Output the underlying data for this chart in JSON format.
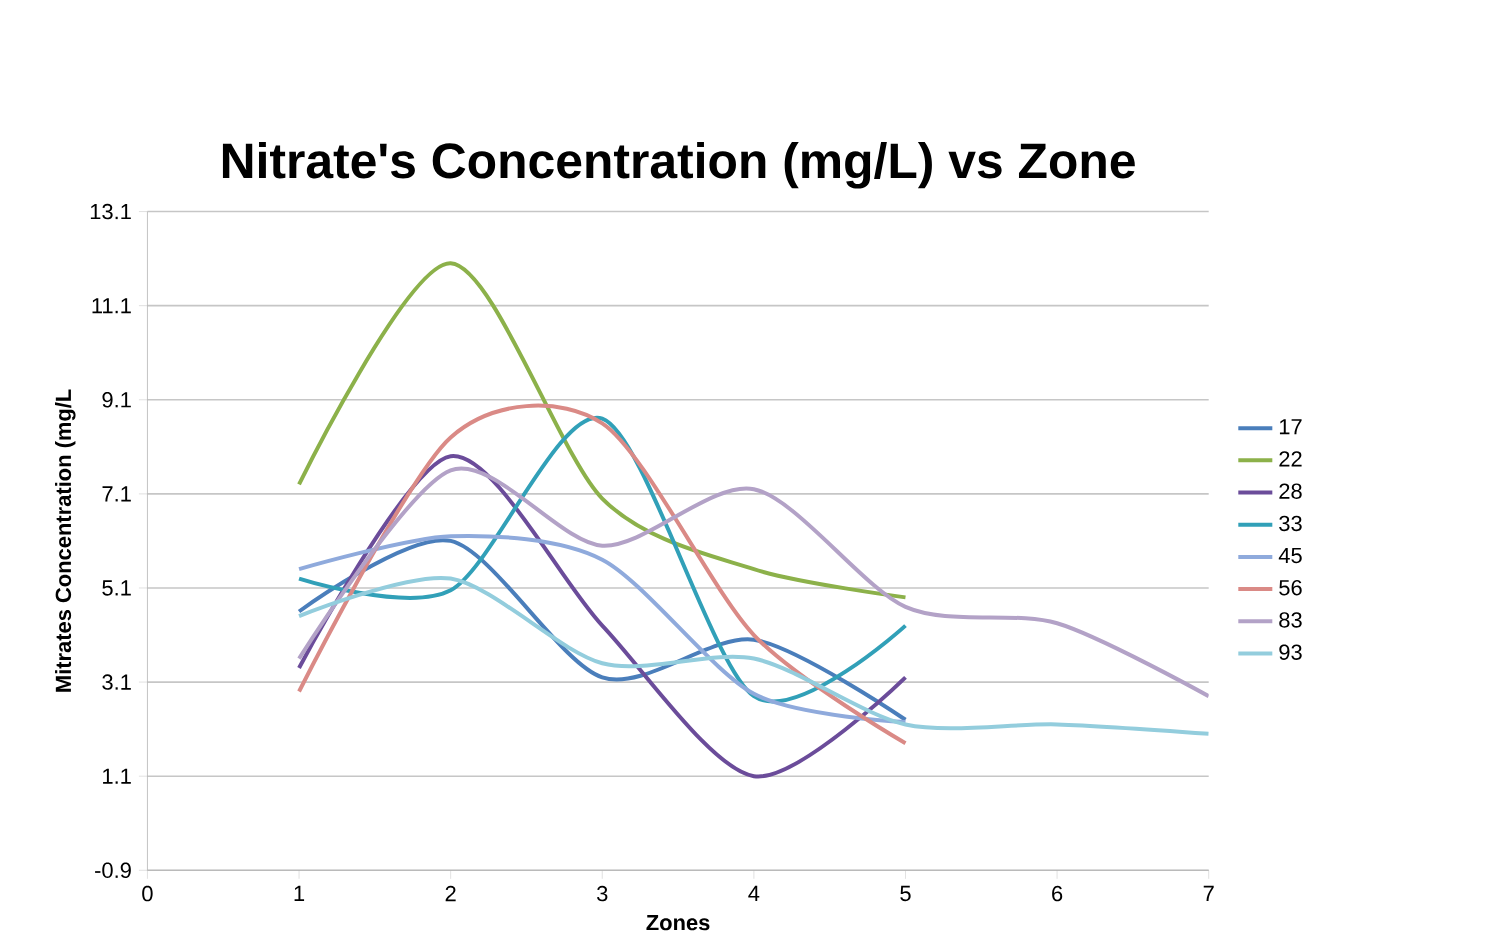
{
  "chart_data": {
    "type": "line",
    "title": "Nitrate's Concentration (mg/L) vs Zone",
    "xlabel": "Zones",
    "ylabel": "Mitrates Concentration (mg/L",
    "xlim": [
      0,
      7
    ],
    "ylim": [
      -0.9,
      13.1
    ],
    "xticks": [
      0,
      1,
      2,
      3,
      4,
      5,
      6,
      7
    ],
    "yticks": [
      -0.9,
      1.1,
      3.1,
      5.1,
      7.1,
      9.1,
      11.1,
      13.1
    ],
    "grid": "y",
    "legend": "right",
    "marker": "none",
    "line_style": "solid",
    "series": [
      {
        "name": "17",
        "color": "#4a7ebb",
        "x": [
          1,
          2,
          3,
          4,
          5
        ],
        "values": [
          4.6,
          6.1,
          3.2,
          4.0,
          2.3
        ]
      },
      {
        "name": "22",
        "color": "#8cb14a",
        "x": [
          1,
          2,
          3,
          4,
          5
        ],
        "values": [
          7.3,
          12.0,
          7.0,
          5.5,
          4.9
        ]
      },
      {
        "name": "28",
        "color": "#6b4c9a",
        "x": [
          1,
          2,
          3,
          4,
          5
        ],
        "values": [
          3.4,
          7.9,
          4.3,
          1.1,
          3.2
        ]
      },
      {
        "name": "33",
        "color": "#31a0b8",
        "x": [
          1,
          2,
          3,
          4,
          5
        ],
        "values": [
          5.3,
          5.05,
          8.7,
          2.8,
          4.3
        ]
      },
      {
        "name": "45",
        "color": "#8faadc",
        "x": [
          1,
          2,
          3,
          4,
          5
        ],
        "values": [
          5.5,
          6.2,
          5.7,
          2.85,
          2.25
        ]
      },
      {
        "name": "56",
        "color": "#da8a86",
        "x": [
          1,
          2,
          3,
          4,
          5
        ],
        "values": [
          2.9,
          8.3,
          8.6,
          4.1,
          1.8
        ]
      },
      {
        "name": "83",
        "color": "#b3a2c7",
        "x": [
          1,
          2,
          3,
          4,
          5,
          6,
          7
        ],
        "values": [
          3.6,
          7.6,
          6.0,
          7.2,
          4.7,
          4.35,
          2.8
        ]
      },
      {
        "name": "93",
        "color": "#93cddd",
        "x": [
          1,
          2,
          3,
          4,
          5,
          6,
          7
        ],
        "values": [
          4.5,
          5.3,
          3.5,
          3.6,
          2.2,
          2.2,
          2.0
        ]
      }
    ]
  }
}
